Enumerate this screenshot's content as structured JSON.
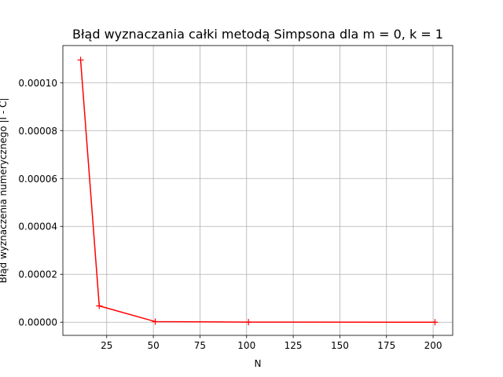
{
  "chart_data": {
    "type": "line",
    "title": "Błąd wyznaczania całki metodą Simpsona dla m = 0, k = 1",
    "xlabel": "N",
    "ylabel": "Błąd wyznaczenia numerycznego |I - C|",
    "x_ticks": [
      "25",
      "50",
      "75",
      "100",
      "125",
      "150",
      "175",
      "200"
    ],
    "y_ticks": [
      "0.00000",
      "0.00002",
      "0.00004",
      "0.00006",
      "0.00008",
      "0.00010"
    ],
    "xlim": [
      1.5,
      210.5
    ],
    "ylim": [
      -5.5e-06,
      0.0001155
    ],
    "grid": true,
    "series": [
      {
        "x": [
          11,
          21,
          51,
          101,
          201
        ],
        "y": [
          0.0001095,
          6.8e-06,
          2.5e-07,
          2e-08,
          1e-09
        ],
        "color": "#ff0000",
        "marker": "+"
      }
    ]
  }
}
